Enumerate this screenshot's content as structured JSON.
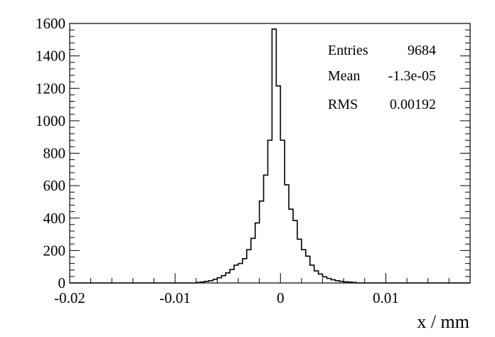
{
  "chart_data": {
    "type": "bar",
    "subtype": "step-histogram",
    "title": "",
    "xlabel": "x / mm",
    "ylabel": "",
    "xlim": [
      -0.02,
      0.018
    ],
    "ylim": [
      0,
      1600
    ],
    "grid": false,
    "x_ticks": [
      {
        "value": -0.02,
        "label": "-0.02"
      },
      {
        "value": -0.01,
        "label": "-0.01"
      },
      {
        "value": 0,
        "label": "0"
      },
      {
        "value": 0.01,
        "label": "0.01"
      }
    ],
    "y_ticks": [
      {
        "value": 0,
        "label": "0"
      },
      {
        "value": 200,
        "label": "200"
      },
      {
        "value": 400,
        "label": "400"
      },
      {
        "value": 600,
        "label": "600"
      },
      {
        "value": 800,
        "label": "800"
      },
      {
        "value": 1000,
        "label": "1000"
      },
      {
        "value": 1200,
        "label": "1200"
      },
      {
        "value": 1400,
        "label": "1400"
      },
      {
        "value": 1600,
        "label": "1600"
      }
    ],
    "bins": [
      {
        "x": -0.0078,
        "y": 3
      },
      {
        "x": -0.0074,
        "y": 6
      },
      {
        "x": -0.007,
        "y": 10
      },
      {
        "x": -0.0066,
        "y": 14
      },
      {
        "x": -0.0062,
        "y": 22
      },
      {
        "x": -0.0058,
        "y": 32
      },
      {
        "x": -0.0054,
        "y": 45
      },
      {
        "x": -0.005,
        "y": 62
      },
      {
        "x": -0.0046,
        "y": 83
      },
      {
        "x": -0.0042,
        "y": 110
      },
      {
        "x": -0.0038,
        "y": 120
      },
      {
        "x": -0.0034,
        "y": 150
      },
      {
        "x": -0.003,
        "y": 205
      },
      {
        "x": -0.0026,
        "y": 275
      },
      {
        "x": -0.0022,
        "y": 370
      },
      {
        "x": -0.0018,
        "y": 505
      },
      {
        "x": -0.0014,
        "y": 665
      },
      {
        "x": -0.001,
        "y": 880
      },
      {
        "x": -0.0006,
        "y": 1565
      },
      {
        "x": -0.0002,
        "y": 1215
      },
      {
        "x": 0.0002,
        "y": 880
      },
      {
        "x": 0.0006,
        "y": 605
      },
      {
        "x": 0.001,
        "y": 455
      },
      {
        "x": 0.0014,
        "y": 385
      },
      {
        "x": 0.0018,
        "y": 270
      },
      {
        "x": 0.0022,
        "y": 205
      },
      {
        "x": 0.0026,
        "y": 165
      },
      {
        "x": 0.003,
        "y": 110
      },
      {
        "x": 0.0034,
        "y": 75
      },
      {
        "x": 0.0038,
        "y": 55
      },
      {
        "x": 0.0042,
        "y": 38
      },
      {
        "x": 0.0046,
        "y": 28
      },
      {
        "x": 0.005,
        "y": 20
      },
      {
        "x": 0.0054,
        "y": 14
      },
      {
        "x": 0.0058,
        "y": 10
      },
      {
        "x": 0.0062,
        "y": 7
      },
      {
        "x": 0.0066,
        "y": 5
      },
      {
        "x": 0.007,
        "y": 3
      }
    ],
    "bin_width": 0.0004
  },
  "stats": [
    {
      "label": "Entries",
      "value": "9684"
    },
    {
      "label": "Mean",
      "value": "-1.3e-05"
    },
    {
      "label": "RMS",
      "value": "0.00192"
    }
  ]
}
